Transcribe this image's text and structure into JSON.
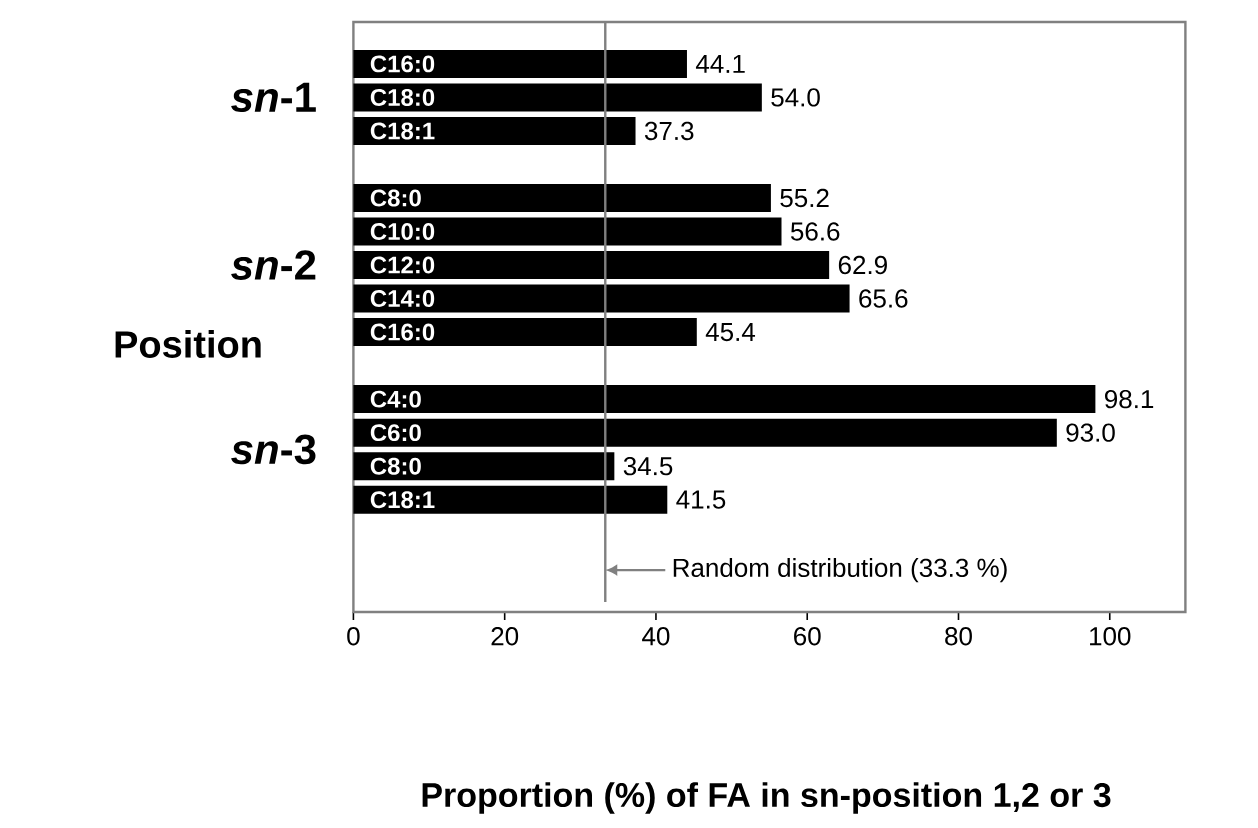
{
  "chart_data": {
    "type": "bar",
    "orientation": "horizontal",
    "xlabel": "Proportion (%) of FA in sn-position 1,2 or 3",
    "ylabel": "Position",
    "categories": [
      "C16:0",
      "C18:0",
      "C18:1",
      null,
      "C8:0",
      "C10:0",
      "C12:0",
      "C14:0",
      "C16:0",
      null,
      "C4:0",
      "C6:0",
      "C8:0",
      "C18:1"
    ],
    "values": [
      44.1,
      54.0,
      37.3,
      null,
      55.2,
      56.6,
      62.9,
      65.6,
      45.4,
      null,
      98.1,
      93.0,
      34.5,
      41.5
    ],
    "color": "#000000",
    "xlim": [
      0,
      110
    ],
    "xticks": [
      0,
      20,
      40,
      60,
      80,
      100
    ],
    "value_labels": [
      "44.1",
      "54.0",
      "37.3",
      null,
      "55.2",
      "56.6",
      "62.9",
      "65.6",
      "45.4",
      null,
      "98.1",
      "93.0",
      "34.5",
      "41.5"
    ],
    "ref_lines": [
      {
        "axis": "x",
        "value": 33.3,
        "label": "Random distribution (33.3 %)",
        "color": "#808080"
      }
    ],
    "annotations": [
      "*sn*-1",
      "*sn*-2",
      "*sn*-3"
    ]
  }
}
